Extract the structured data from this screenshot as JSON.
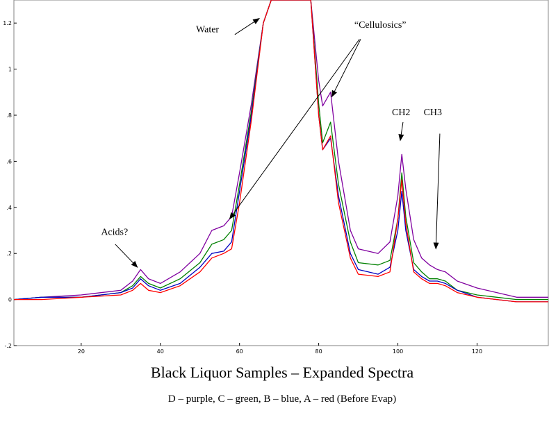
{
  "chart_data": {
    "type": "line",
    "title": "Black Liquor Samples – Expanded Spectra",
    "subtitle": "D – purple, C – green, B – blue, A – red (Before Evap)",
    "xlabel": "",
    "ylabel": "",
    "xlim": [
      3,
      138
    ],
    "ylim": [
      -0.2,
      1.3
    ],
    "x_ticks": [
      20,
      40,
      60,
      80,
      100,
      120
    ],
    "x_tick_labels": [
      "20",
      "40",
      "60",
      "80",
      "100",
      "120"
    ],
    "y_ticks": [
      -0.2,
      0,
      0.2,
      0.4,
      0.6,
      0.8,
      1.0,
      1.2
    ],
    "y_tick_labels": [
      "-.2",
      "0",
      ".2",
      ".4",
      ".6",
      ".8",
      "1",
      "1.2"
    ],
    "grid": false,
    "legend": "none",
    "series": [
      {
        "name": "D",
        "color": "#8000a0",
        "x": [
          3,
          10,
          20,
          30,
          33,
          35,
          37,
          40,
          45,
          50,
          53,
          56,
          58,
          60,
          63,
          66,
          68,
          70,
          75,
          78,
          80,
          81,
          83,
          85,
          88,
          90,
          95,
          98,
          100,
          101,
          102,
          104,
          106,
          108,
          110,
          112,
          115,
          120,
          125,
          130,
          135,
          138
        ],
        "y": [
          0.0,
          0.01,
          0.02,
          0.04,
          0.08,
          0.13,
          0.09,
          0.07,
          0.12,
          0.2,
          0.3,
          0.32,
          0.36,
          0.55,
          0.85,
          1.2,
          1.3,
          1.3,
          1.3,
          1.3,
          0.95,
          0.84,
          0.9,
          0.6,
          0.3,
          0.22,
          0.2,
          0.25,
          0.45,
          0.63,
          0.48,
          0.26,
          0.18,
          0.15,
          0.13,
          0.12,
          0.08,
          0.05,
          0.03,
          0.01,
          0.01,
          0.01
        ]
      },
      {
        "name": "C",
        "color": "#008000",
        "x": [
          3,
          10,
          20,
          30,
          33,
          35,
          37,
          40,
          45,
          50,
          53,
          56,
          58,
          60,
          63,
          66,
          68,
          70,
          75,
          78,
          80,
          81,
          83,
          85,
          88,
          90,
          95,
          98,
          100,
          101,
          102,
          104,
          106,
          108,
          110,
          112,
          115,
          120,
          125,
          130,
          135,
          138
        ],
        "y": [
          0.0,
          0.01,
          0.01,
          0.03,
          0.06,
          0.1,
          0.07,
          0.05,
          0.09,
          0.16,
          0.24,
          0.26,
          0.3,
          0.5,
          0.82,
          1.2,
          1.3,
          1.3,
          1.3,
          1.3,
          0.85,
          0.68,
          0.77,
          0.5,
          0.25,
          0.16,
          0.15,
          0.17,
          0.35,
          0.55,
          0.36,
          0.16,
          0.12,
          0.09,
          0.09,
          0.08,
          0.04,
          0.02,
          0.01,
          0.0,
          0.0,
          0.0
        ]
      },
      {
        "name": "B",
        "color": "#0000c0",
        "x": [
          3,
          10,
          20,
          30,
          33,
          35,
          37,
          40,
          45,
          50,
          53,
          56,
          58,
          60,
          63,
          66,
          68,
          70,
          75,
          78,
          80,
          81,
          83,
          85,
          88,
          90,
          95,
          98,
          100,
          101,
          102,
          104,
          106,
          108,
          110,
          112,
          115,
          120,
          125,
          130,
          135,
          138
        ],
        "y": [
          0.0,
          0.01,
          0.01,
          0.03,
          0.05,
          0.09,
          0.06,
          0.04,
          0.07,
          0.14,
          0.2,
          0.21,
          0.25,
          0.47,
          0.8,
          1.2,
          1.3,
          1.3,
          1.3,
          1.3,
          0.8,
          0.65,
          0.7,
          0.45,
          0.2,
          0.13,
          0.11,
          0.14,
          0.3,
          0.47,
          0.3,
          0.13,
          0.1,
          0.08,
          0.08,
          0.07,
          0.04,
          0.01,
          0.0,
          -0.01,
          -0.01,
          -0.01
        ]
      },
      {
        "name": "A",
        "color": "#ff0000",
        "x": [
          3,
          10,
          20,
          30,
          33,
          35,
          37,
          40,
          45,
          50,
          53,
          56,
          58,
          60,
          63,
          66,
          68,
          70,
          75,
          78,
          80,
          81,
          83,
          85,
          88,
          90,
          95,
          98,
          100,
          101,
          102,
          104,
          106,
          108,
          110,
          112,
          115,
          120,
          125,
          130,
          135,
          138
        ],
        "y": [
          0.0,
          0.0,
          0.01,
          0.02,
          0.04,
          0.07,
          0.04,
          0.03,
          0.06,
          0.12,
          0.18,
          0.2,
          0.22,
          0.42,
          0.78,
          1.2,
          1.3,
          1.3,
          1.3,
          1.3,
          0.8,
          0.65,
          0.71,
          0.42,
          0.18,
          0.11,
          0.1,
          0.12,
          0.35,
          0.52,
          0.33,
          0.12,
          0.09,
          0.07,
          0.07,
          0.06,
          0.03,
          0.01,
          0.0,
          -0.01,
          -0.01,
          -0.01
        ]
      }
    ],
    "annotations": [
      {
        "id": "water",
        "text": "Water",
        "tx": 49,
        "ty": 1.16,
        "arrows": [
          {
            "x1": 58.8,
            "y1": 1.15,
            "x2": 65,
            "y2": 1.22
          }
        ]
      },
      {
        "id": "cellulosics",
        "text": "“Cellulosics”",
        "tx": 89,
        "ty": 1.18,
        "arrows": [
          {
            "x1": 90.6,
            "y1": 1.13,
            "x2": 83.3,
            "y2": 0.88
          },
          {
            "x1": 90.3,
            "y1": 1.13,
            "x2": 57.5,
            "y2": 0.35
          }
        ]
      },
      {
        "id": "acids",
        "text": "Acids?",
        "tx": 25,
        "ty": 0.28,
        "arrows": [
          {
            "x1": 28.6,
            "y1": 0.24,
            "x2": 34.2,
            "y2": 0.14
          }
        ]
      },
      {
        "id": "ch2",
        "text": "CH2",
        "tx": 98.5,
        "ty": 0.8,
        "arrows": [
          {
            "x1": 101.3,
            "y1": 0.77,
            "x2": 100.6,
            "y2": 0.69
          }
        ]
      },
      {
        "id": "ch3",
        "text": "CH3",
        "tx": 106.5,
        "ty": 0.8,
        "arrows": [
          {
            "x1": 110.6,
            "y1": 0.72,
            "x2": 109.6,
            "y2": 0.22
          }
        ]
      }
    ]
  }
}
